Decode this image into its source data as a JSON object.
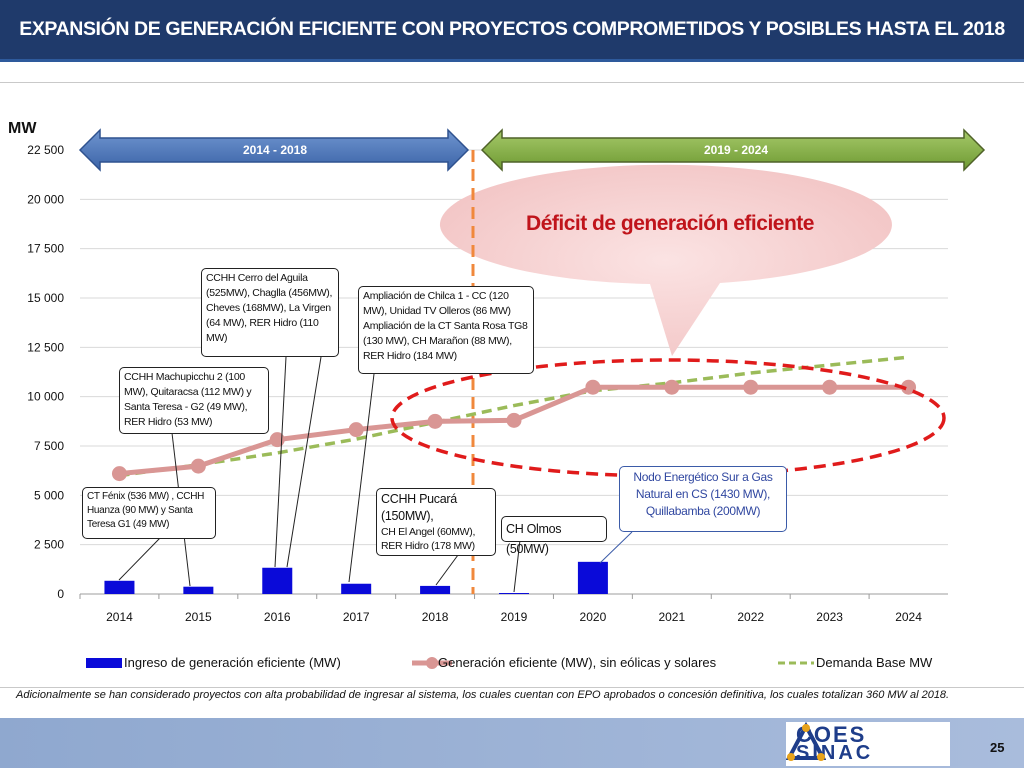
{
  "header": {
    "title": "EXPANSIÓN DE GENERACIÓN EFICIENTE CON PROYECTOS COMPROMETIDOS Y POSIBLES HASTA EL 2018"
  },
  "chart_data": {
    "type": "bar",
    "ylabel": "MW",
    "ylim": [
      0,
      22500
    ],
    "yticks": [
      "0",
      "2 500",
      "5 000",
      "7 500",
      "10 000",
      "12 500",
      "15 000",
      "17 500",
      "20 000",
      "22 500"
    ],
    "ytick_values": [
      0,
      2500,
      5000,
      7500,
      10000,
      12500,
      15000,
      17500,
      20000,
      22500
    ],
    "categories": [
      "2014",
      "2015",
      "2016",
      "2017",
      "2018",
      "2019",
      "2020",
      "2021",
      "2022",
      "2023",
      "2024"
    ],
    "grid": true,
    "legend_position": "bottom",
    "series": [
      {
        "name": "Ingreso de generación eficiente (MW)",
        "kind": "bar",
        "color": "#0a0ad9",
        "values": [
          670,
          370,
          1330,
          520,
          410,
          50,
          1630,
          0,
          0,
          0,
          0
        ]
      },
      {
        "name": "Generación eficiente (MW), sin eólicas y solares",
        "kind": "line-marker",
        "color": "#d99694",
        "values": [
          6100,
          6480,
          7820,
          8330,
          8750,
          8800,
          10480,
          10480,
          10480,
          10480,
          10480
        ]
      },
      {
        "name": "Demanda Base MW",
        "kind": "dashed",
        "color": "#9bbb59",
        "values": [
          6000,
          6550,
          7150,
          7850,
          8700,
          9550,
          10300,
          10700,
          11200,
          11600,
          12000
        ]
      }
    ],
    "periods": [
      {
        "label": "2014 - 2018",
        "color": "#4f81bd"
      },
      {
        "label": "2019 - 2024",
        "color": "#77933c"
      }
    ],
    "annotation_bubble": "Déficit de generación  eficiente",
    "callouts": [
      "CT Fénix (536 MW) , CCHH Huanza (90 MW) y Santa Teresa  G1 (49 MW)",
      "CCHH Machupicchu  2 (100 MW), Quitaracsa  (112 MW) y Santa Teresa - G2  (49 MW), RER  Hidro (53 MW)",
      "CCHH Cerro del Aguila (525MW),  Chaglla (456MW), Cheves (168MW), La Virgen  (64 MW), RER  Hidro (110 MW)",
      "Ampliación  de Chilca 1 - CC (120 MW), Unidad TV Olleros  (86 MW) Ampliación  de la CT Santa Rosa TG8 (130 MW), CH Marañon (88 MW),  RER Hidro (184 MW)",
      "CH Olmos (50MW)"
    ],
    "callout_pucara": {
      "line1": "CCHH  Pucará",
      "line2": "(150MW),",
      "line3": "CH El Angel  (60MW),",
      "line4": "RER Hidro (178 MW)"
    },
    "callout_gas": "Nodo Energético Sur a Gas Natural en CS (1430 MW), Quillabamba (200MW)"
  },
  "footnote": "Adicionalmente se han considerado proyectos con alta probabilidad de ingresar al sistema, los cuales cuentan con EPO aprobados o concesión definitiva, los cuales totalizan 360 MW al 2018.",
  "footer": {
    "logo_line1": "COES",
    "logo_line2": "SINAC",
    "page_number": "25"
  }
}
